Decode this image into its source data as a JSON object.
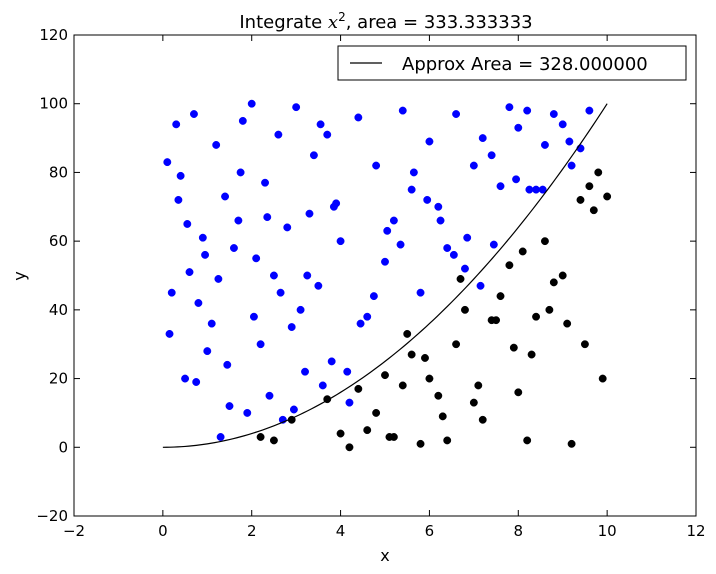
{
  "chart_data": {
    "type": "scatter",
    "title": "Integrate x², area = 333.333333",
    "title_parts": {
      "prefix": "Integrate ",
      "math": "x",
      "sup": "2",
      "suffix": ", area = 333.333333"
    },
    "xlabel": "x",
    "ylabel": "y",
    "xlim": [
      -2,
      12
    ],
    "ylim": [
      -20,
      120
    ],
    "xticks": [
      -2,
      0,
      2,
      4,
      6,
      8,
      10,
      12
    ],
    "yticks": [
      -20,
      0,
      20,
      40,
      60,
      80,
      100,
      120
    ],
    "legend": {
      "placement": "top-right",
      "entries": [
        "Approx Area = 328.000000"
      ]
    },
    "grid": false,
    "colors": {
      "above": "#0000ff",
      "below": "#000000",
      "curve": "#000000"
    },
    "series": [
      {
        "kind": "line",
        "name": "Approx Area = 328.000000",
        "function": "y = x^2",
        "x_range": [
          0,
          10
        ]
      },
      {
        "kind": "scatter",
        "color": "blue",
        "x": [
          0.1,
          0.2,
          0.3,
          0.4,
          0.5,
          0.6,
          0.7,
          0.8,
          0.9,
          1.0,
          1.1,
          1.2,
          1.3,
          1.4,
          1.5,
          1.6,
          1.7,
          1.8,
          1.9,
          2.0,
          2.1,
          2.2,
          2.3,
          2.4,
          2.5,
          2.6,
          2.7,
          2.8,
          2.9,
          3.0,
          3.1,
          3.2,
          3.3,
          3.4,
          3.5,
          3.6,
          3.7,
          3.8,
          3.9,
          4.0,
          4.2,
          4.4,
          4.6,
          4.8,
          5.0,
          5.2,
          5.4,
          5.6,
          5.8,
          6.0,
          6.2,
          6.4,
          6.6,
          6.8,
          7.0,
          7.2,
          7.4,
          7.6,
          7.8,
          8.0,
          8.2,
          8.4,
          8.6,
          8.8,
          9.0,
          9.2,
          9.4,
          9.6,
          0.15,
          0.35,
          0.55,
          0.75,
          0.95,
          1.25,
          1.45,
          1.75,
          2.05,
          2.35,
          2.65,
          2.95,
          3.25,
          3.55,
          3.85,
          4.15,
          4.45,
          4.75,
          5.05,
          5.35,
          5.65,
          5.95,
          6.25,
          6.55,
          6.85,
          7.15,
          7.45,
          7.95,
          8.25,
          8.55,
          9.15
        ],
        "y": [
          83,
          45,
          94,
          79,
          20,
          51,
          97,
          42,
          61,
          28,
          36,
          88,
          3,
          73,
          12,
          58,
          66,
          95,
          10,
          100,
          55,
          30,
          77,
          15,
          50,
          91,
          8,
          64,
          35,
          99,
          40,
          22,
          68,
          85,
          47,
          18,
          91,
          25,
          71,
          60,
          13,
          96,
          38,
          82,
          54,
          66,
          98,
          75,
          45,
          89,
          70,
          58,
          97,
          52,
          82,
          90,
          85,
          76,
          99,
          93,
          98,
          75,
          88,
          97,
          94,
          82,
          87,
          98,
          33,
          72,
          65,
          19,
          56,
          49,
          24,
          80,
          38,
          67,
          45,
          11,
          50,
          94,
          70,
          22,
          36,
          44,
          63,
          59,
          80,
          72,
          66,
          56,
          61,
          47,
          59,
          78,
          75,
          75,
          89
        ]
      },
      {
        "kind": "scatter",
        "color": "black",
        "x": [
          2.2,
          2.5,
          2.9,
          3.7,
          4.0,
          4.2,
          4.4,
          4.6,
          4.8,
          5.0,
          5.2,
          5.4,
          5.6,
          5.8,
          6.0,
          6.2,
          6.4,
          6.6,
          6.8,
          7.0,
          7.2,
          7.4,
          7.6,
          7.8,
          8.0,
          8.2,
          8.4,
          8.6,
          8.8,
          9.0,
          9.2,
          9.4,
          9.6,
          9.8,
          10.0,
          5.1,
          5.5,
          5.9,
          6.3,
          6.7,
          7.1,
          7.5,
          7.9,
          8.3,
          8.7,
          9.1,
          9.5,
          9.9,
          9.7,
          8.1
        ],
        "y": [
          3,
          2,
          8,
          14,
          4,
          0,
          17,
          5,
          10,
          21,
          3,
          18,
          27,
          1,
          20,
          15,
          2,
          30,
          40,
          13,
          8,
          37,
          44,
          53,
          16,
          2,
          38,
          60,
          48,
          50,
          1,
          72,
          76,
          80,
          73,
          3,
          33,
          26,
          9,
          49,
          18,
          37,
          29,
          27,
          40,
          36,
          30,
          20,
          69,
          57
        ]
      }
    ]
  }
}
